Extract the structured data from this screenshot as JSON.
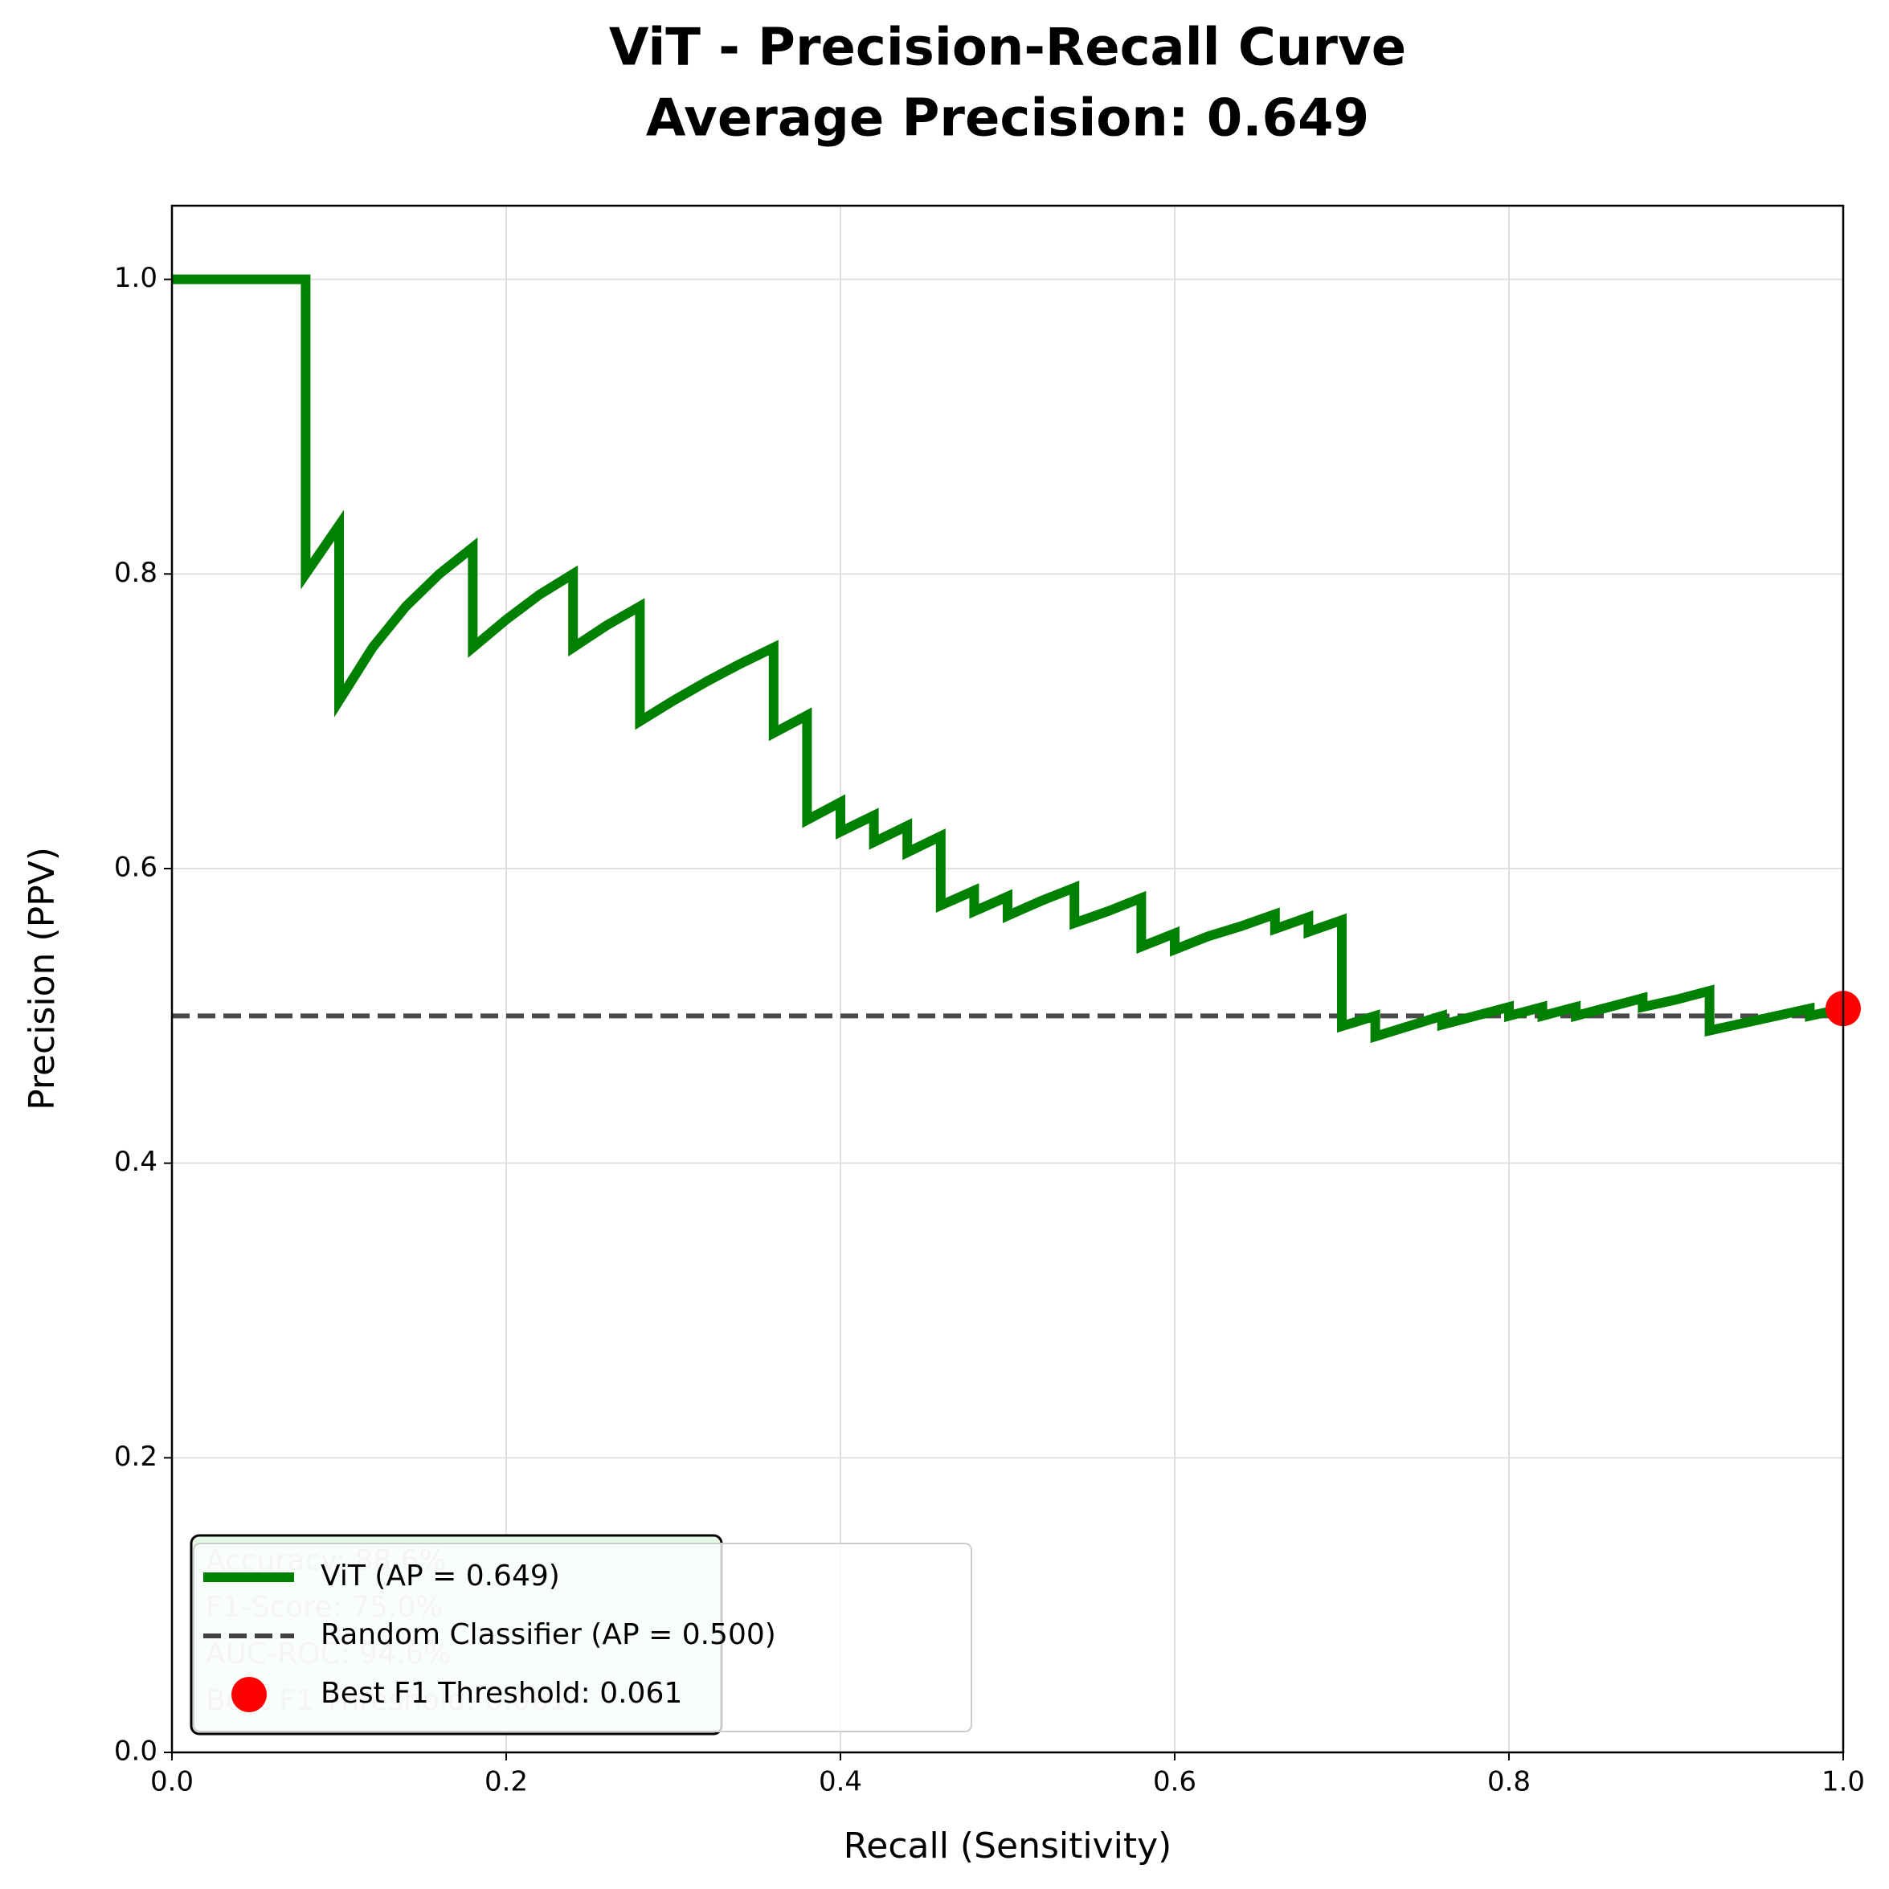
{
  "chart_data": {
    "type": "line",
    "title": "ViT - Precision-Recall Curve",
    "subtitle": "Average Precision: 0.649",
    "x_label": "Recall (Sensitivity)",
    "y_label": "Precision (PPV)",
    "xlim": [
      0,
      1
    ],
    "ylim": [
      0,
      1.05
    ],
    "xticks": [
      {
        "value": 0,
        "label": "0.0"
      },
      0.2,
      0.4,
      0.6,
      0.8,
      {
        "value": 1,
        "label": "1.0"
      }
    ],
    "yticks": [
      {
        "value": 0,
        "label": "0.0"
      },
      0.2,
      0.4,
      0.6,
      0.8,
      {
        "value": 1,
        "label": "1.0"
      }
    ],
    "grid": true,
    "legend": "lower left",
    "series": [
      {
        "name": "ViT (AP = 0.649)",
        "color": "#008000",
        "style": "solid",
        "x": [
          0,
          0.08,
          0.08,
          0.1,
          0.1,
          0.12,
          0.14,
          0.16,
          0.18,
          0.18,
          0.2,
          0.22,
          0.24,
          0.24,
          0.26,
          0.28,
          0.28,
          0.3,
          0.32,
          0.34,
          0.36,
          0.36,
          0.38,
          0.38,
          0.4,
          0.4,
          0.42,
          0.42,
          0.44,
          0.44,
          0.46,
          0.46,
          0.48,
          0.48,
          0.5,
          0.5,
          0.52,
          0.54,
          0.54,
          0.56,
          0.58,
          0.58,
          0.6,
          0.6,
          0.62,
          0.64,
          0.66,
          0.66,
          0.68,
          0.68,
          0.7,
          0.7,
          0.72,
          0.72,
          0.74,
          0.76,
          0.76,
          0.78,
          0.8,
          0.8,
          0.82,
          0.82,
          0.84,
          0.84,
          0.86,
          0.88,
          0.88,
          0.9,
          0.92,
          0.92,
          0.94,
          0.96,
          0.98,
          0.98,
          1.0
        ],
        "values": [
          1,
          1,
          0.8,
          0.833,
          0.714,
          0.75,
          0.778,
          0.8,
          0.818,
          0.75,
          0.769,
          0.786,
          0.8,
          0.75,
          0.765,
          0.778,
          0.7,
          0.714,
          0.727,
          0.739,
          0.75,
          0.692,
          0.704,
          0.633,
          0.645,
          0.625,
          0.636,
          0.618,
          0.629,
          0.611,
          0.622,
          0.575,
          0.585,
          0.571,
          0.581,
          0.568,
          0.578,
          0.587,
          0.563,
          0.571,
          0.58,
          0.547,
          0.556,
          0.545,
          0.554,
          0.561,
          0.569,
          0.559,
          0.567,
          0.557,
          0.565,
          0.493,
          0.5,
          0.486,
          0.493,
          0.5,
          0.494,
          0.5,
          0.506,
          0.5,
          0.506,
          0.5,
          0.506,
          0.5,
          0.506,
          0.512,
          0.506,
          0.511,
          0.517,
          0.49,
          0.495,
          0.5,
          0.505,
          0.5,
          0.505
        ]
      },
      {
        "name": "Random Classifier (AP = 0.500)",
        "color": "#404040",
        "style": "dashed",
        "x": [
          0,
          1
        ],
        "values": [
          0.5,
          0.5
        ]
      },
      {
        "name": "Best F1 Threshold: 0.061",
        "color": "#ff0000",
        "style": "marker",
        "x": [
          1.0
        ],
        "values": [
          0.505
        ]
      }
    ],
    "annotation": {
      "lines": [
        "Accuracy: 88.6%",
        "F1-Score: 75.0%",
        "AUC-ROC: 94.6%",
        "Best F1 Threshold: 0.061"
      ],
      "background": "#e6f9e6"
    }
  }
}
